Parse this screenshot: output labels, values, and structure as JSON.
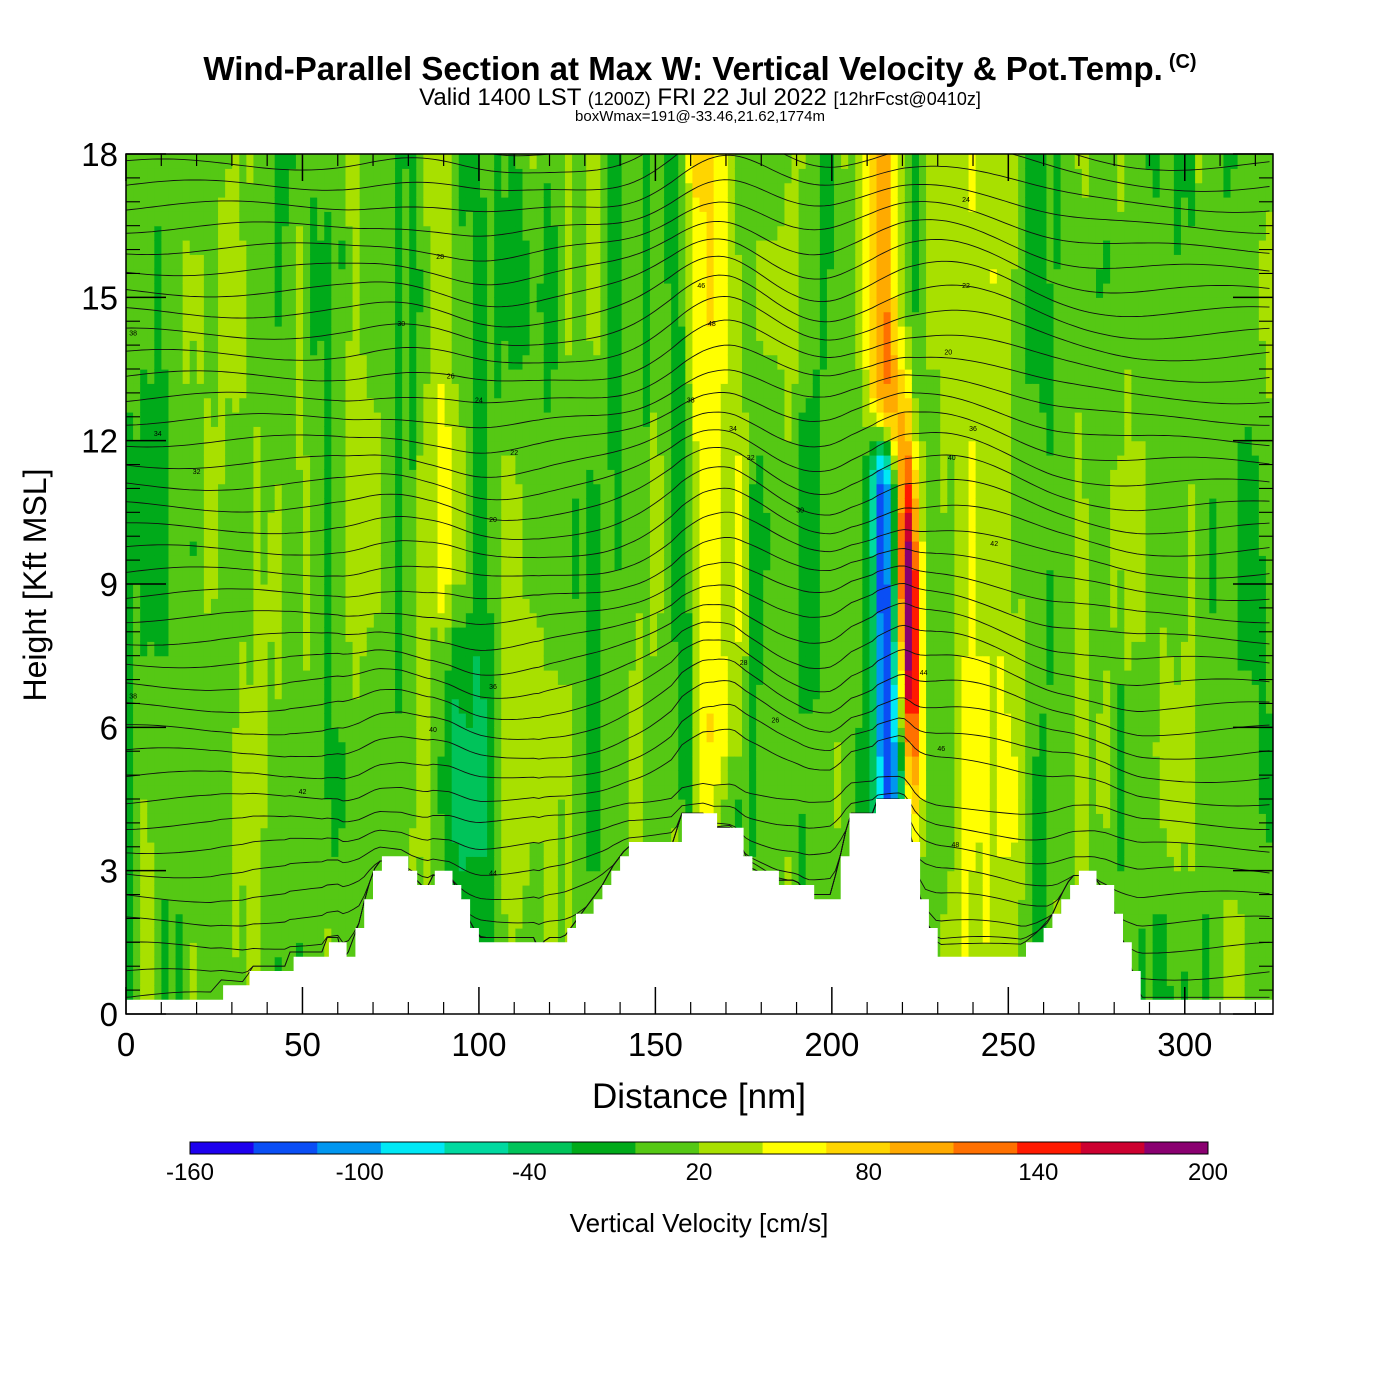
{
  "title": "Wind-Parallel Section at Max W: Vertical Velocity & Pot.Temp.",
  "copyright": "(C)",
  "subtitle": {
    "valid": "Valid 1400 LST",
    "utc": "(1200Z)",
    "date": "FRI 22 Jul 2022",
    "forecast": "[12hrFcst@0410z]"
  },
  "note": "boxWmax=191@-33.46,21.62,1774m",
  "chart_data": {
    "type": "heatmap",
    "xlabel": "Distance [nm]",
    "ylabel": "Height [Kft MSL]",
    "xlim": [
      0,
      325
    ],
    "ylim": [
      0,
      18
    ],
    "x_ticks": [
      0,
      50,
      100,
      150,
      200,
      250,
      300
    ],
    "x_tick_labels": [
      "0",
      "50",
      "100",
      "150",
      "200",
      "250",
      "300"
    ],
    "y_ticks": [
      0,
      3,
      6,
      9,
      12,
      15,
      18
    ],
    "y_tick_labels": [
      "0",
      "3",
      "6",
      "9",
      "12",
      "15",
      "18"
    ],
    "colorbar": {
      "label": "Vertical Velocity [cm/s]",
      "min": -160,
      "max": 200,
      "tick_values": [
        -160,
        -100,
        -40,
        20,
        80,
        140,
        200
      ],
      "tick_labels": [
        "-160",
        "-100",
        "-40",
        "20",
        "80",
        "140",
        "200"
      ],
      "colors": [
        "#1d00ee",
        "#0a4ef5",
        "#0096f0",
        "#00e8f5",
        "#00d9a0",
        "#00c35a",
        "#00aa1a",
        "#55c814",
        "#a8e000",
        "#ffff00",
        "#ffd500",
        "#ffaa00",
        "#ff7000",
        "#ff1a00",
        "#cc0030",
        "#8a0070"
      ]
    },
    "terrain_kft": [
      [
        0,
        0.35
      ],
      [
        25,
        0.35
      ],
      [
        26,
        0.65
      ],
      [
        34,
        0.65
      ],
      [
        35,
        1.0
      ],
      [
        45,
        1.0
      ],
      [
        46,
        1.3
      ],
      [
        56,
        1.3
      ],
      [
        57,
        1.6
      ],
      [
        60,
        1.6
      ],
      [
        62,
        1.0
      ],
      [
        63,
        1.3
      ],
      [
        66,
        1.9
      ],
      [
        68,
        2.5
      ],
      [
        70,
        3.0
      ],
      [
        72,
        3.2
      ],
      [
        78,
        3.2
      ],
      [
        81,
        2.9
      ],
      [
        85,
        2.6
      ],
      [
        87,
        2.9
      ],
      [
        92,
        2.9
      ],
      [
        95,
        2.4
      ],
      [
        97,
        2.0
      ],
      [
        100,
        1.6
      ],
      [
        116,
        1.6
      ],
      [
        117,
        1.3
      ],
      [
        119,
        1.6
      ],
      [
        124,
        1.6
      ],
      [
        127,
        1.9
      ],
      [
        131,
        2.3
      ],
      [
        135,
        2.7
      ],
      [
        138,
        3.1
      ],
      [
        142,
        3.5
      ],
      [
        155,
        3.5
      ],
      [
        157,
        4.2
      ],
      [
        164,
        4.2
      ],
      [
        166,
        3.9
      ],
      [
        172,
        3.9
      ],
      [
        174,
        3.5
      ],
      [
        176,
        3.1
      ],
      [
        184,
        2.8
      ],
      [
        190,
        2.8
      ],
      [
        193,
        2.5
      ],
      [
        200,
        2.5
      ],
      [
        201,
        2.9
      ],
      [
        203,
        3.5
      ],
      [
        205,
        4.2
      ],
      [
        212,
        4.2
      ],
      [
        213,
        4.5
      ],
      [
        220,
        4.5
      ],
      [
        222,
        3.8
      ],
      [
        224,
        2.8
      ],
      [
        226,
        2.0
      ],
      [
        230,
        1.3
      ],
      [
        254,
        1.3
      ],
      [
        258,
        1.6
      ],
      [
        262,
        2.0
      ],
      [
        265,
        2.5
      ],
      [
        268,
        2.9
      ],
      [
        274,
        2.9
      ],
      [
        278,
        2.5
      ],
      [
        282,
        1.6
      ],
      [
        286,
        0.7
      ],
      [
        287,
        0.35
      ],
      [
        325,
        0.35
      ]
    ],
    "vertical_velocity_features": [
      {
        "name": "updraft",
        "x": 90,
        "x_spread": 3,
        "z_bottom": 9,
        "z_top": 18,
        "value": 40
      },
      {
        "name": "downdraft",
        "x": 94,
        "x_spread": 3,
        "z_bottom": 2,
        "z_top": 8,
        "value": -30
      },
      {
        "name": "updraft",
        "x": 162,
        "x_spread": 2.5,
        "z_bottom": 4,
        "z_top": 18,
        "value": 60
      },
      {
        "name": "downdraft",
        "x": 158,
        "x_spread": 2.5,
        "z_bottom": 5,
        "z_top": 18,
        "value": -40
      },
      {
        "name": "updraft",
        "x": 167,
        "x_spread": 2.5,
        "z_bottom": 6,
        "z_top": 18,
        "value": 40
      },
      {
        "name": "updraft",
        "x": 173,
        "x_spread": 2,
        "z_bottom": 6,
        "z_top": 18,
        "value": 30
      },
      {
        "name": "downdraft",
        "x": 217,
        "x_spread": 3,
        "z_bottom": 4,
        "z_top": 11,
        "value": -150
      },
      {
        "name": "updraft",
        "x": 223,
        "x_spread": 2.5,
        "z_bottom": 4,
        "z_top": 14,
        "value": 191
      },
      {
        "name": "updraft",
        "x": 215,
        "x_spread": 3,
        "z_bottom": 13,
        "z_top": 18,
        "value": 80
      },
      {
        "name": "updraft",
        "x": 238,
        "x_spread": 4,
        "z_bottom": 2,
        "z_top": 18,
        "value": 30
      },
      {
        "name": "updraft",
        "x": 250,
        "x_spread": 4,
        "z_bottom": 4,
        "z_top": 18,
        "value": 25
      },
      {
        "name": "downdraft",
        "x": 100,
        "x_spread": 5,
        "z_bottom": 4,
        "z_top": 18,
        "value": -20
      }
    ],
    "potential_temperature_contours": {
      "label_values": [
        "38",
        "34",
        "32",
        "30",
        "28",
        "26",
        "24",
        "22",
        "20",
        "36",
        "40",
        "42",
        "44",
        "46",
        "48"
      ],
      "count": 40
    }
  }
}
